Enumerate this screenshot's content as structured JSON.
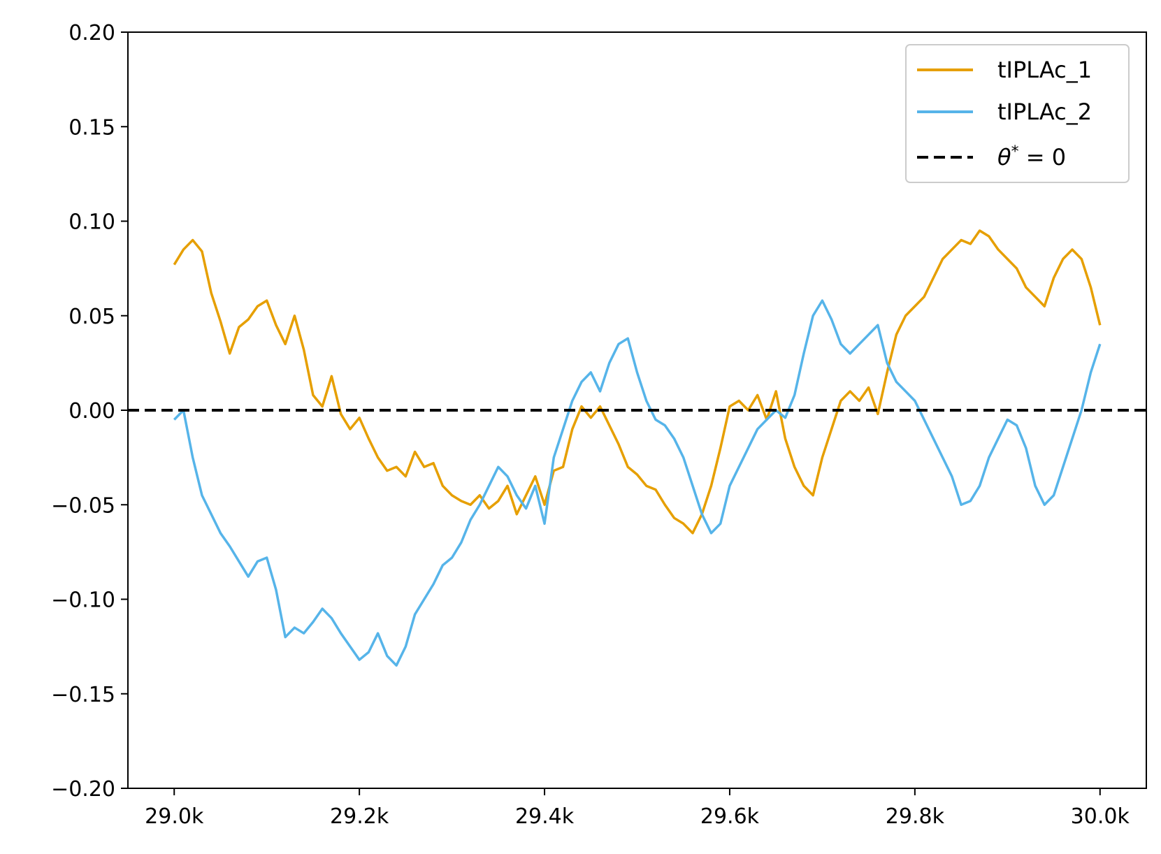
{
  "chart_data": {
    "type": "line",
    "title": "",
    "xlabel": "",
    "ylabel": "",
    "xlim": [
      28950,
      30050
    ],
    "ylim": [
      -0.2,
      0.2
    ],
    "grid": false,
    "legend_placement": "top-right",
    "x_ticks": [
      {
        "value": 29000,
        "label": "29.0k"
      },
      {
        "value": 29200,
        "label": "29.2k"
      },
      {
        "value": 29400,
        "label": "29.4k"
      },
      {
        "value": 29600,
        "label": "29.6k"
      },
      {
        "value": 29800,
        "label": "29.8k"
      },
      {
        "value": 30000,
        "label": "30.0k"
      }
    ],
    "y_ticks": [
      {
        "value": 0.2,
        "label": "0.20"
      },
      {
        "value": 0.15,
        "label": "0.15"
      },
      {
        "value": 0.1,
        "label": "0.10"
      },
      {
        "value": 0.05,
        "label": "0.05"
      },
      {
        "value": 0.0,
        "label": "0.00"
      },
      {
        "value": -0.05,
        "label": "−0.05"
      },
      {
        "value": -0.1,
        "label": "−0.10"
      },
      {
        "value": -0.15,
        "label": "−0.15"
      },
      {
        "value": -0.2,
        "label": "−0.20"
      }
    ],
    "series": [
      {
        "name": "tIPLAc_1",
        "color": "#E69F00",
        "style": "solid",
        "x": [
          29000,
          29010,
          29020,
          29030,
          29040,
          29050,
          29060,
          29070,
          29080,
          29090,
          29100,
          29110,
          29120,
          29130,
          29140,
          29150,
          29160,
          29170,
          29180,
          29190,
          29200,
          29210,
          29220,
          29230,
          29240,
          29250,
          29260,
          29270,
          29280,
          29290,
          29300,
          29310,
          29320,
          29330,
          29340,
          29350,
          29360,
          29370,
          29380,
          29390,
          29400,
          29410,
          29420,
          29430,
          29440,
          29450,
          29460,
          29470,
          29480,
          29490,
          29500,
          29510,
          29520,
          29530,
          29540,
          29550,
          29560,
          29570,
          29580,
          29590,
          29600,
          29610,
          29620,
          29630,
          29640,
          29650,
          29660,
          29670,
          29680,
          29690,
          29700,
          29710,
          29720,
          29730,
          29740,
          29750,
          29760,
          29770,
          29780,
          29790,
          29800,
          29810,
          29820,
          29830,
          29840,
          29850,
          29860,
          29870,
          29880,
          29890,
          29900,
          29910,
          29920,
          29930,
          29940,
          29950,
          29960,
          29970,
          29980,
          29990,
          30000
        ],
        "y": [
          0.077,
          0.085,
          0.09,
          0.084,
          0.062,
          0.047,
          0.03,
          0.044,
          0.048,
          0.055,
          0.058,
          0.045,
          0.035,
          0.05,
          0.032,
          0.008,
          0.002,
          0.018,
          -0.002,
          -0.01,
          -0.004,
          -0.015,
          -0.025,
          -0.032,
          -0.03,
          -0.035,
          -0.022,
          -0.03,
          -0.028,
          -0.04,
          -0.045,
          -0.048,
          -0.05,
          -0.045,
          -0.052,
          -0.048,
          -0.04,
          -0.055,
          -0.045,
          -0.035,
          -0.05,
          -0.032,
          -0.03,
          -0.01,
          0.002,
          -0.004,
          0.002,
          -0.008,
          -0.018,
          -0.03,
          -0.034,
          -0.04,
          -0.042,
          -0.05,
          -0.057,
          -0.06,
          -0.065,
          -0.055,
          -0.04,
          -0.02,
          0.002,
          0.005,
          0.0,
          0.008,
          -0.005,
          0.01,
          -0.015,
          -0.03,
          -0.04,
          -0.045,
          -0.025,
          -0.01,
          0.005,
          0.01,
          0.005,
          0.012,
          -0.002,
          0.02,
          0.04,
          0.05,
          0.055,
          0.06,
          0.07,
          0.08,
          0.085,
          0.09,
          0.088,
          0.095,
          0.092,
          0.085,
          0.08,
          0.075,
          0.065,
          0.06,
          0.055,
          0.07,
          0.08,
          0.085,
          0.08,
          0.065,
          0.045
        ],
        "x_": null
      },
      {
        "name": "tIPLAc_2",
        "color": "#56B4E9",
        "style": "solid",
        "x": [
          29000,
          29010,
          29020,
          29030,
          29040,
          29050,
          29060,
          29070,
          29080,
          29090,
          29100,
          29110,
          29120,
          29130,
          29140,
          29150,
          29160,
          29170,
          29180,
          29190,
          29200,
          29210,
          29220,
          29230,
          29240,
          29250,
          29260,
          29270,
          29280,
          29290,
          29300,
          29310,
          29320,
          29330,
          29340,
          29350,
          29360,
          29370,
          29380,
          29390,
          29400,
          29410,
          29420,
          29430,
          29440,
          29450,
          29460,
          29470,
          29480,
          29490,
          29500,
          29510,
          29520,
          29530,
          29540,
          29550,
          29560,
          29570,
          29580,
          29590,
          29600,
          29610,
          29620,
          29630,
          29640,
          29650,
          29660,
          29670,
          29680,
          29690,
          29700,
          29710,
          29720,
          29730,
          29740,
          29750,
          29760,
          29770,
          29780,
          29790,
          29800,
          29810,
          29820,
          29830,
          29840,
          29850,
          29860,
          29870,
          29880,
          29890,
          29900,
          29910,
          29920,
          29930,
          29940,
          29950,
          29960,
          29970,
          29980,
          29990,
          30000
        ],
        "y": [
          -0.005,
          0.0,
          -0.025,
          -0.045,
          -0.055,
          -0.065,
          -0.072,
          -0.08,
          -0.088,
          -0.08,
          -0.078,
          -0.095,
          -0.12,
          -0.115,
          -0.118,
          -0.112,
          -0.105,
          -0.11,
          -0.118,
          -0.125,
          -0.132,
          -0.128,
          -0.118,
          -0.13,
          -0.135,
          -0.125,
          -0.108,
          -0.1,
          -0.092,
          -0.082,
          -0.078,
          -0.07,
          -0.058,
          -0.05,
          -0.04,
          -0.03,
          -0.035,
          -0.045,
          -0.052,
          -0.04,
          -0.06,
          -0.025,
          -0.01,
          0.005,
          0.015,
          0.02,
          0.01,
          0.025,
          0.035,
          0.038,
          0.02,
          0.005,
          -0.005,
          -0.008,
          -0.015,
          -0.025,
          -0.04,
          -0.055,
          -0.065,
          -0.06,
          -0.04,
          -0.03,
          -0.02,
          -0.01,
          -0.005,
          0.0,
          -0.004,
          0.008,
          0.03,
          0.05,
          0.058,
          0.048,
          0.035,
          0.03,
          0.035,
          0.04,
          0.045,
          0.025,
          0.015,
          0.01,
          0.005,
          -0.005,
          -0.015,
          -0.025,
          -0.035,
          -0.05,
          -0.048,
          -0.04,
          -0.025,
          -0.015,
          -0.005,
          -0.008,
          -0.02,
          -0.04,
          -0.05,
          -0.045,
          -0.03,
          -0.015,
          0.0,
          0.02,
          0.035
        ]
      },
      {
        "name": "θ* = 0",
        "color": "#000000",
        "style": "dashed",
        "x": [
          28950,
          30050
        ],
        "y": [
          0,
          0
        ]
      }
    ]
  },
  "legend": {
    "items": [
      {
        "label": "tIPLAc_1",
        "color": "#E69F00",
        "style": "solid"
      },
      {
        "label": "tIPLAc_2",
        "color": "#56B4E9",
        "style": "solid"
      },
      {
        "label_theta": "θ",
        "label_star": "*",
        "label_rest": " = 0",
        "color": "#000000",
        "style": "dashed"
      }
    ]
  }
}
